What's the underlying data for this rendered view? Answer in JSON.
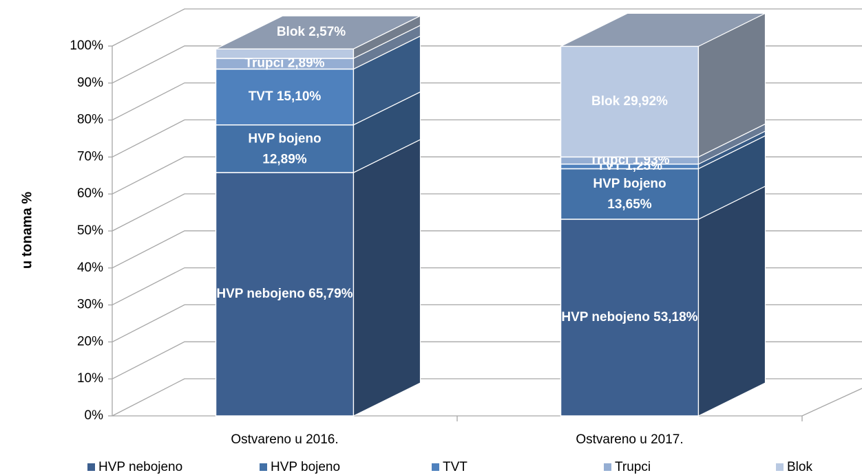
{
  "chart_data": {
    "type": "bar3d_stacked",
    "y_axis_label": "u tonama %",
    "categories": [
      "Ostvareno u 2016.",
      "Ostvareno u 2017."
    ],
    "series": [
      {
        "name": "HVP nebojeno",
        "color": "#3d5f8f",
        "values": [
          65.79,
          53.18
        ],
        "value_labels": [
          "65,79%",
          "53,18%"
        ]
      },
      {
        "name": "HVP bojeno",
        "color": "#4371a7",
        "values": [
          12.89,
          13.65
        ],
        "value_labels": [
          "12,89%",
          "13,65%"
        ]
      },
      {
        "name": "TVT",
        "color": "#4f81bd",
        "values": [
          15.1,
          1.25
        ],
        "value_labels": [
          "15,10%",
          "1,25%"
        ]
      },
      {
        "name": "Trupci",
        "color": "#95aed3",
        "values": [
          2.89,
          1.93
        ],
        "value_labels": [
          "2,89%",
          "1,93%"
        ]
      },
      {
        "name": "Blok",
        "color": "#b9c9e2",
        "values": [
          2.57,
          29.92
        ],
        "value_labels": [
          "2,57%",
          "29,92%"
        ]
      }
    ],
    "ylim": [
      0,
      100
    ],
    "yticks": [
      {
        "value": 0,
        "label": "0%"
      },
      {
        "value": 10,
        "label": "10%"
      },
      {
        "value": 20,
        "label": "20%"
      },
      {
        "value": 30,
        "label": "30%"
      },
      {
        "value": 40,
        "label": "40%"
      },
      {
        "value": 50,
        "label": "50%"
      },
      {
        "value": 60,
        "label": "60%"
      },
      {
        "value": 70,
        "label": "70%"
      },
      {
        "value": 80,
        "label": "80%"
      },
      {
        "value": 90,
        "label": "90%"
      },
      {
        "value": 100,
        "label": "100%"
      }
    ],
    "grid": true,
    "legend": "bottom"
  }
}
